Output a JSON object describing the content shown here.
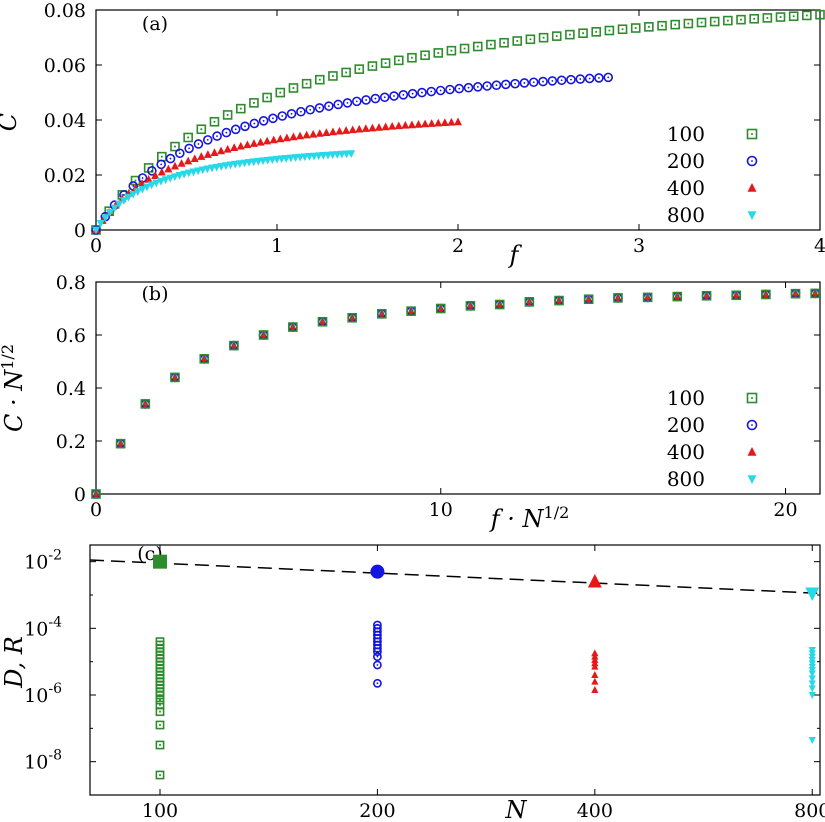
{
  "chart_data": [
    {
      "type": "scatter",
      "panel_label": "(a)",
      "xlabel": "f",
      "ylabel": "C",
      "xlim": [
        0,
        4
      ],
      "ylim": [
        0,
        0.08
      ],
      "x_ticks": [
        0,
        1,
        2,
        3,
        4
      ],
      "x_tick_labels": [
        "0",
        "1",
        "2",
        "3",
        "4"
      ],
      "y_ticks": [
        0,
        0.02,
        0.04,
        0.06,
        0.08
      ],
      "y_tick_labels": [
        "0",
        "0.02",
        "0.04",
        "0.06",
        "0.08"
      ],
      "legend": {
        "position": "right",
        "entries": [
          "100",
          "200",
          "400",
          "800"
        ]
      },
      "series": [
        {
          "name": "100",
          "marker": "square-open",
          "color": "#2e8b2e",
          "f_max": 4.0,
          "c_max": 0.0783,
          "count": 56
        },
        {
          "name": "200",
          "marker": "circle-open",
          "color": "#1515e0",
          "f_max": 2.83,
          "c_max": 0.0555,
          "count": 56
        },
        {
          "name": "400",
          "marker": "triangle-up",
          "color": "#e81818",
          "f_max": 2.0,
          "c_max": 0.0393,
          "count": 56
        },
        {
          "name": "800",
          "marker": "triangle-down",
          "color": "#27d9e8",
          "f_max": 1.41,
          "c_max": 0.0278,
          "count": 56
        }
      ]
    },
    {
      "type": "scatter",
      "panel_label": "(b)",
      "xlabel": "f · N^{1/2}",
      "ylabel": "C · N^{1/2}",
      "xlim": [
        0,
        21
      ],
      "ylim": [
        0,
        0.8
      ],
      "x_ticks": [
        0,
        10,
        20
      ],
      "x_tick_labels": [
        "0",
        "10",
        "20"
      ],
      "y_ticks": [
        0,
        0.2,
        0.4,
        0.6,
        0.8
      ],
      "y_tick_labels": [
        "0",
        "0.2",
        "0.4",
        "0.6",
        "0.8"
      ],
      "legend": {
        "position": "right",
        "entries": [
          "100",
          "200",
          "400",
          "800"
        ]
      },
      "x": [
        0,
        0.714,
        1.43,
        2.29,
        3.14,
        4.0,
        4.86,
        5.71,
        6.57,
        7.43,
        8.29,
        9.14,
        10.0,
        10.86,
        11.71,
        12.57,
        13.43,
        14.29,
        15.14,
        16.0,
        16.86,
        17.71,
        18.57,
        19.43,
        20.29,
        20.86
      ],
      "y": [
        0,
        0.19,
        0.34,
        0.44,
        0.51,
        0.56,
        0.6,
        0.63,
        0.65,
        0.665,
        0.68,
        0.69,
        0.7,
        0.71,
        0.715,
        0.725,
        0.73,
        0.735,
        0.74,
        0.742,
        0.745,
        0.748,
        0.75,
        0.753,
        0.756,
        0.757
      ]
    },
    {
      "type": "scatter",
      "panel_label": "(c)",
      "xlabel": "N",
      "ylabel": "D, R",
      "xscale": "log",
      "yscale": "log",
      "xlim": [
        80,
        820
      ],
      "ylim_exp": [
        -9,
        -1.5
      ],
      "x_ticks": [
        100,
        200,
        400,
        800
      ],
      "x_tick_labels": [
        "100",
        "200",
        "400",
        "800"
      ],
      "y_ticks_exp": [
        -2,
        -4,
        -6,
        -8
      ],
      "y_tick_labels": [
        "10",
        "10",
        "10",
        "10"
      ],
      "y_tick_exponents": [
        "-2",
        "-4",
        "-6",
        "-8"
      ],
      "fit_line": {
        "style": "dashed",
        "x": [
          80,
          820
        ],
        "y_exp": [
          -1.95,
          -2.95
        ]
      },
      "large_markers": [
        {
          "N": 100,
          "value_exp": -2.0,
          "series": "100"
        },
        {
          "N": 200,
          "value_exp": -2.3,
          "series": "200"
        },
        {
          "N": 400,
          "value_exp": -2.6,
          "series": "400"
        },
        {
          "N": 800,
          "value_exp": -2.95,
          "series": "800"
        }
      ],
      "small_markers": [
        {
          "series": "100",
          "N": 100,
          "values_exp": [
            -4.4,
            -4.5,
            -4.6,
            -4.7,
            -4.8,
            -4.9,
            -5.0,
            -5.1,
            -5.2,
            -5.3,
            -5.4,
            -5.5,
            -5.6,
            -5.7,
            -5.8,
            -5.9,
            -6.0,
            -6.15,
            -6.3,
            -6.5,
            -6.9,
            -7.5,
            -8.4
          ]
        },
        {
          "series": "200",
          "N": 200,
          "values_exp": [
            -3.9,
            -4.0,
            -4.1,
            -4.2,
            -4.3,
            -4.4,
            -4.5,
            -4.6,
            -4.7,
            -4.85,
            -5.1,
            -5.65
          ]
        },
        {
          "series": "400",
          "N": 400,
          "values_exp": [
            -4.75,
            -4.85,
            -4.95,
            -5.05,
            -5.15,
            -5.4,
            -5.6,
            -5.85
          ]
        },
        {
          "series": "800",
          "N": 800,
          "values_exp": [
            -4.65,
            -4.75,
            -4.85,
            -4.95,
            -5.05,
            -5.15,
            -5.25,
            -5.35,
            -5.5,
            -5.65,
            -5.8,
            -6.0,
            -7.35
          ]
        }
      ]
    }
  ]
}
